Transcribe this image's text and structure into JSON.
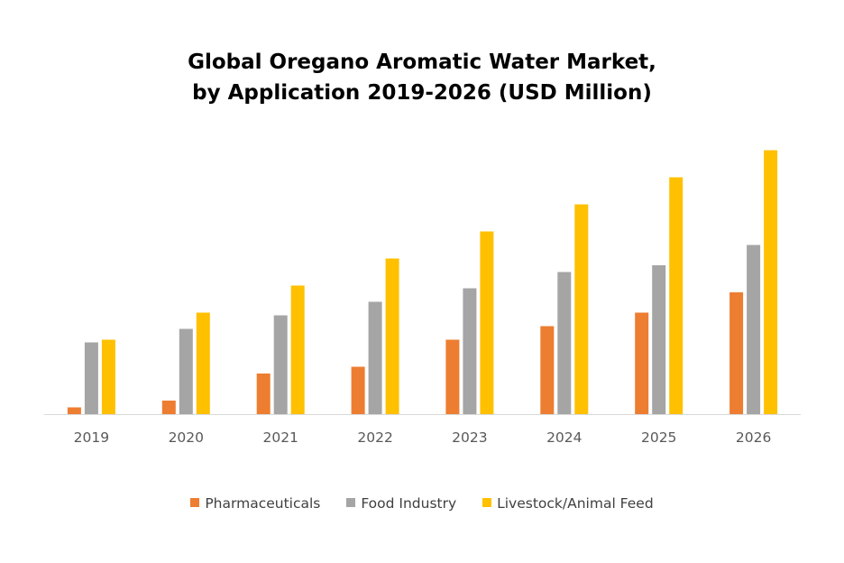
{
  "chart_data": {
    "type": "bar",
    "title": "Global Oregano Aromatic Water Market,",
    "subtitle": "by Application 2019-2026 (USD Million)",
    "categories": [
      "2019",
      "2020",
      "2021",
      "2022",
      "2023",
      "2024",
      "2025",
      "2026"
    ],
    "series": [
      {
        "name": "Pharmaceuticals",
        "color": "#ED7D31",
        "values": [
          0.5,
          1.0,
          3.0,
          3.5,
          5.5,
          6.5,
          7.5,
          9.0
        ]
      },
      {
        "name": "Food Industry",
        "color": "#A5A5A5",
        "values": [
          5.3,
          6.3,
          7.3,
          8.3,
          9.3,
          10.5,
          11.0,
          12.5
        ]
      },
      {
        "name": "Livestock/Animal Feed",
        "color": "#FFC000",
        "values": [
          5.5,
          7.5,
          9.5,
          11.5,
          13.5,
          15.5,
          17.5,
          19.5
        ]
      }
    ],
    "ylim": [
      0,
      20
    ],
    "grid": false,
    "legend_position": "bottom",
    "axis_color": "#D9D9D9",
    "tick_label_color": "#595959"
  }
}
